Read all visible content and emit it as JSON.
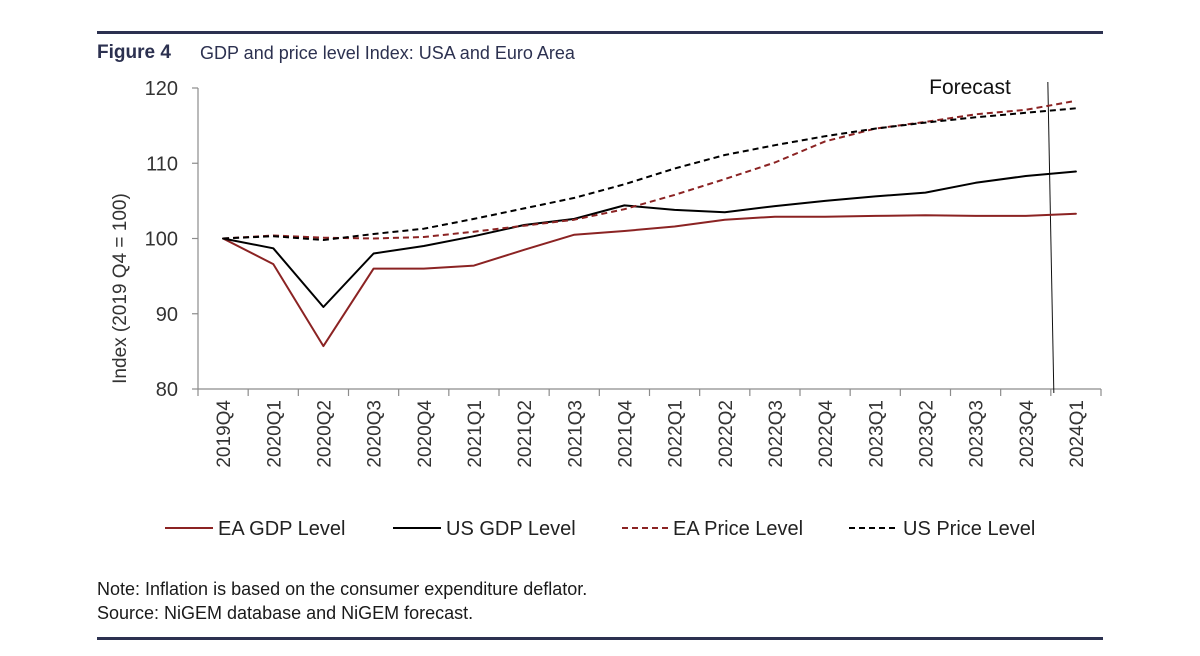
{
  "figure": {
    "label": "Figure 4",
    "title": "GDP and price level Index: USA and Euro Area"
  },
  "notes": {
    "note": "Note: Inflation is based on the consumer expenditure deflator.",
    "source": "Source: NiGEM database and NiGEM forecast."
  },
  "chart_data": {
    "type": "line",
    "title": "GDP and price level Index: USA and Euro Area",
    "xlabel": "",
    "ylabel": "Index (2019 Q4 = 100)",
    "ylim": [
      80,
      120
    ],
    "yticks": [
      80,
      90,
      100,
      110,
      120
    ],
    "categories": [
      "2019Q4",
      "2020Q1",
      "2020Q2",
      "2020Q3",
      "2020Q4",
      "2021Q1",
      "2021Q2",
      "2021Q3",
      "2021Q4",
      "2022Q1",
      "2022Q2",
      "2022Q3",
      "2022Q4",
      "2023Q1",
      "2023Q2",
      "2023Q3",
      "2023Q4",
      "2024Q1"
    ],
    "annotation": {
      "text": "Forecast",
      "between": [
        "2023Q4",
        "2024Q1"
      ]
    },
    "legend_position": "bottom",
    "series": [
      {
        "name": "EA GDP Level",
        "color": "#8b2323",
        "dash": "solid",
        "values": [
          100,
          96.6,
          85.7,
          96.0,
          96.0,
          96.4,
          98.5,
          100.5,
          101.0,
          101.6,
          102.5,
          102.9,
          102.9,
          103.0,
          103.1,
          103.0,
          103.0,
          103.3
        ]
      },
      {
        "name": "US GDP Level",
        "color": "#000000",
        "dash": "solid",
        "values": [
          100,
          98.7,
          90.9,
          98.0,
          99.0,
          100.3,
          101.8,
          102.6,
          104.4,
          103.8,
          103.5,
          104.3,
          105.0,
          105.6,
          106.1,
          107.4,
          108.3,
          108.9
        ]
      },
      {
        "name": "EA Price Level",
        "color": "#8b2323",
        "dash": "dashed",
        "values": [
          100,
          100.4,
          100.1,
          100.0,
          100.2,
          100.9,
          101.7,
          102.5,
          103.9,
          105.8,
          107.9,
          110.1,
          112.9,
          114.6,
          115.5,
          116.5,
          117.1,
          118.3
        ]
      },
      {
        "name": "US Price Level",
        "color": "#000000",
        "dash": "dashed",
        "values": [
          100,
          100.3,
          99.8,
          100.6,
          101.3,
          102.6,
          104.0,
          105.4,
          107.2,
          109.3,
          111.1,
          112.4,
          113.6,
          114.6,
          115.4,
          116.1,
          116.7,
          117.3
        ]
      }
    ]
  }
}
